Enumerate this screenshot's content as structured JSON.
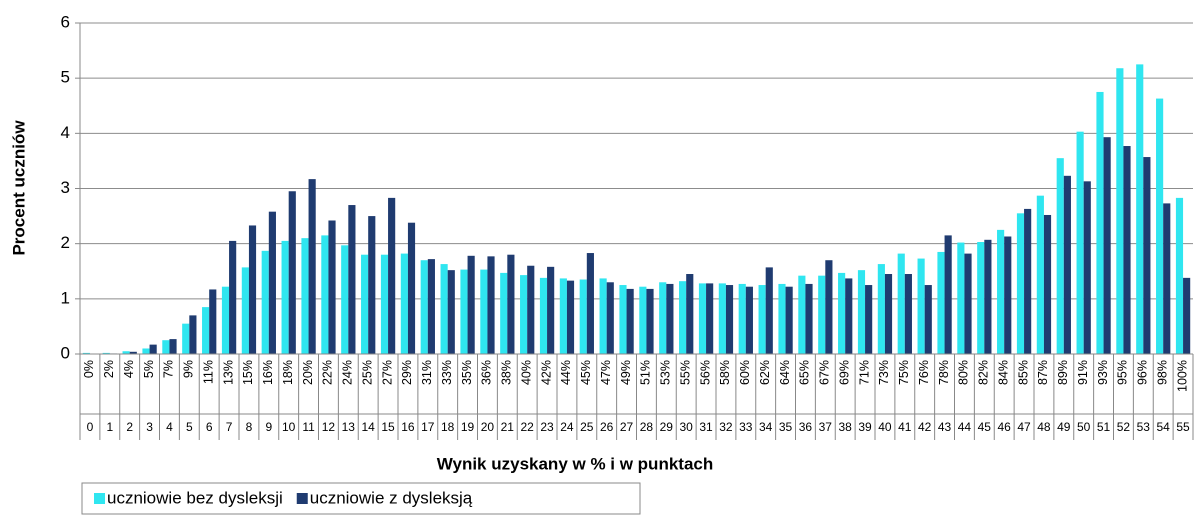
{
  "chart_data": {
    "type": "bar",
    "y_label": "Procent uczniów",
    "x_label": "Wynik uzyskany w % i w punktach",
    "categories": [
      "0%",
      "2%",
      "4%",
      "5%",
      "7%",
      "9%",
      "11%",
      "13%",
      "15%",
      "16%",
      "18%",
      "20%",
      "22%",
      "24%",
      "25%",
      "27%",
      "29%",
      "31%",
      "33%",
      "35%",
      "36%",
      "38%",
      "40%",
      "42%",
      "44%",
      "45%",
      "47%",
      "49%",
      "51%",
      "53%",
      "55%",
      "56%",
      "58%",
      "60%",
      "62%",
      "64%",
      "65%",
      "67%",
      "69%",
      "71%",
      "73%",
      "75%",
      "76%",
      "78%",
      "80%",
      "82%",
      "84%",
      "85%",
      "87%",
      "89%",
      "91%",
      "93%",
      "95%",
      "96%",
      "98%",
      "100%"
    ],
    "categories2": [
      "0",
      "1",
      "2",
      "3",
      "4",
      "5",
      "6",
      "7",
      "8",
      "9",
      "10",
      "11",
      "12",
      "13",
      "14",
      "15",
      "16",
      "17",
      "18",
      "19",
      "20",
      "21",
      "22",
      "23",
      "24",
      "25",
      "26",
      "27",
      "28",
      "29",
      "30",
      "31",
      "32",
      "33",
      "34",
      "35",
      "36",
      "37",
      "38",
      "39",
      "40",
      "41",
      "42",
      "43",
      "44",
      "45",
      "46",
      "47",
      "48",
      "49",
      "50",
      "51",
      "52",
      "53",
      "54",
      "55"
    ],
    "series": [
      {
        "name": "uczniowie bez dysleksji",
        "color": "#2fe6f0",
        "values": [
          0.02,
          0.02,
          0.05,
          0.1,
          0.25,
          0.55,
          0.85,
          1.22,
          1.57,
          1.87,
          2.05,
          2.1,
          2.15,
          1.97,
          1.8,
          1.8,
          1.82,
          1.7,
          1.63,
          1.53,
          1.53,
          1.47,
          1.43,
          1.38,
          1.37,
          1.35,
          1.37,
          1.25,
          1.22,
          1.3,
          1.32,
          1.28,
          1.28,
          1.27,
          1.25,
          1.27,
          1.42,
          1.42,
          1.47,
          1.52,
          1.63,
          1.82,
          1.73,
          1.85,
          2.02,
          2.03,
          2.25,
          2.55,
          2.87,
          3.55,
          4.03,
          4.75,
          5.18,
          5.25,
          4.63,
          2.83
        ]
      },
      {
        "name": "uczniowie z dysleksją",
        "color": "#1f3b70",
        "values": [
          0,
          0.01,
          0.04,
          0.17,
          0.27,
          0.7,
          1.17,
          2.05,
          2.33,
          2.58,
          2.95,
          3.17,
          2.42,
          2.7,
          2.5,
          2.83,
          2.38,
          1.72,
          1.52,
          1.78,
          1.77,
          1.8,
          1.6,
          1.58,
          1.33,
          1.83,
          1.3,
          1.18,
          1.18,
          1.27,
          1.45,
          1.28,
          1.25,
          1.22,
          1.57,
          1.22,
          1.27,
          1.7,
          1.37,
          1.25,
          1.45,
          1.45,
          1.25,
          2.15,
          1.82,
          2.07,
          2.13,
          2.63,
          2.52,
          3.23,
          3.13,
          3.93,
          3.77,
          3.57,
          2.73,
          1.38
        ]
      }
    ],
    "ylim": [
      0,
      6
    ],
    "yticks": [
      0,
      1,
      2,
      3,
      4,
      5,
      6
    ],
    "grid": true
  }
}
